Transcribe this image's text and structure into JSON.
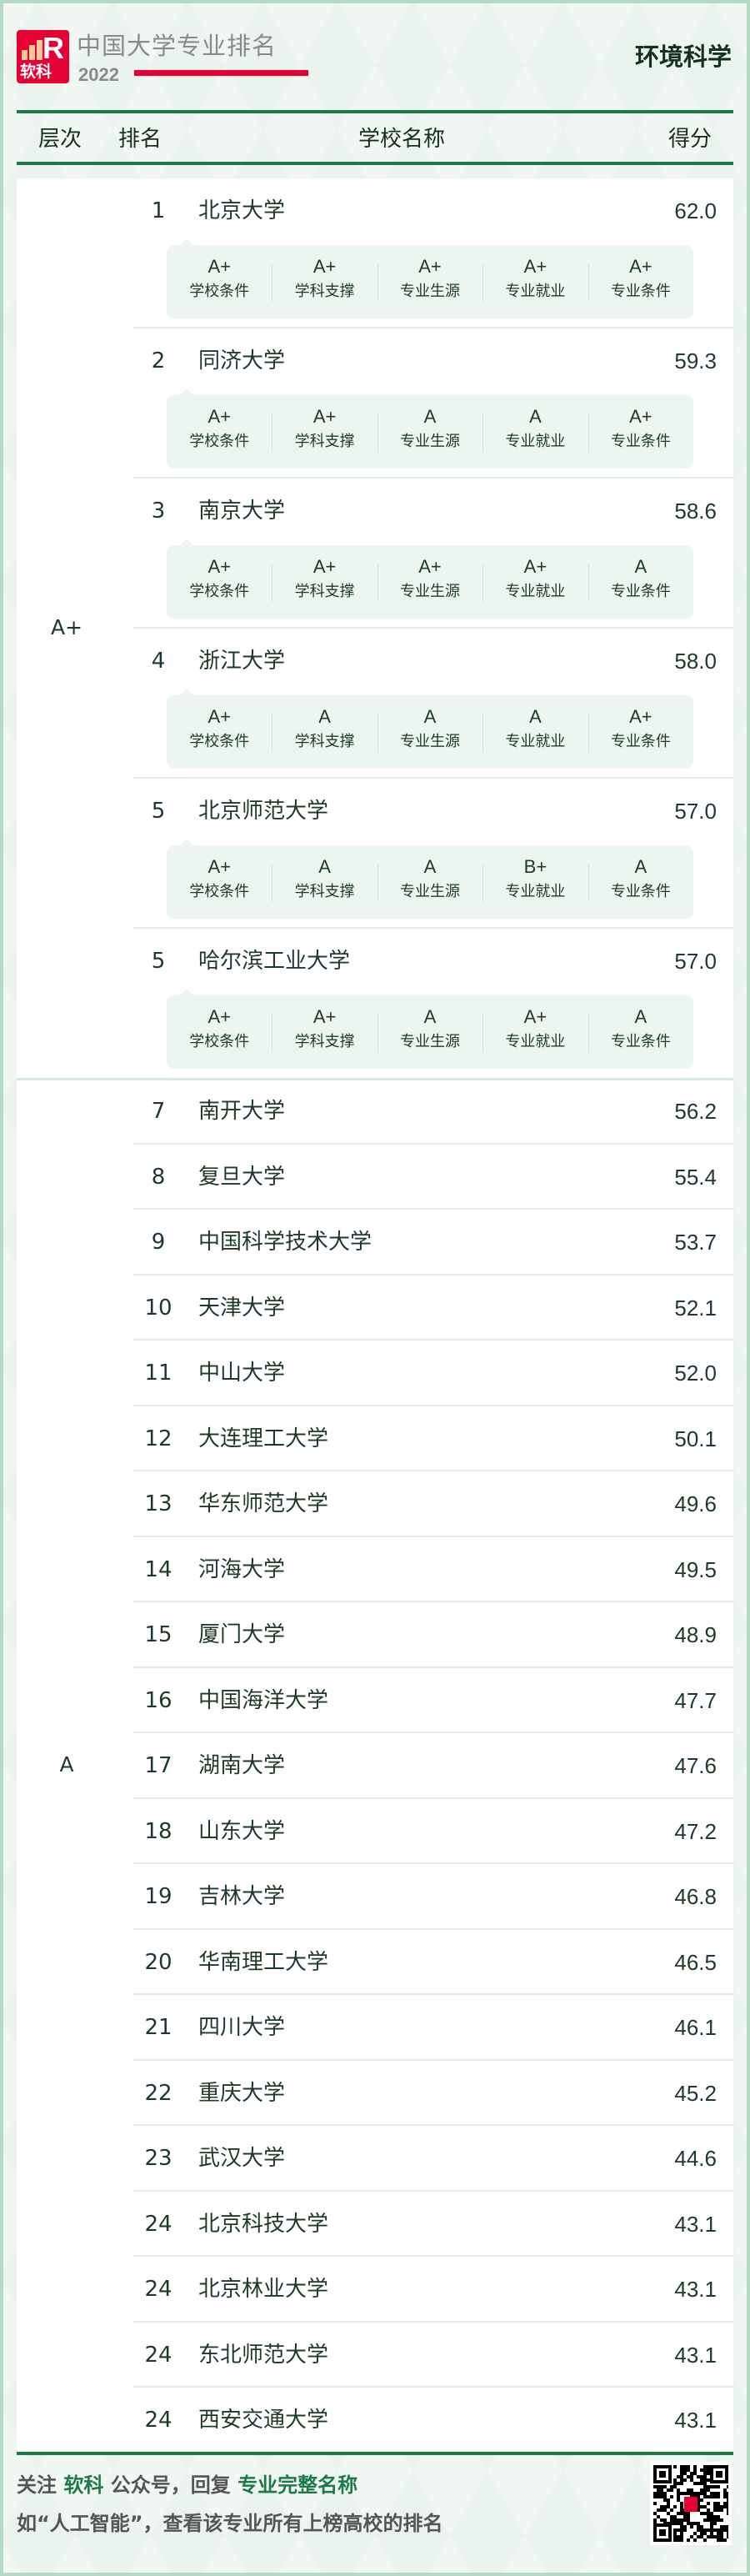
{
  "brand": {
    "logo_text": "软科",
    "title": "中国大学专业排名",
    "year": "2022"
  },
  "subject": "环境科学",
  "header": {
    "level": "层次",
    "rank": "排名",
    "school": "学校名称",
    "score": "得分"
  },
  "grade_labels": [
    "学校条件",
    "学科支撑",
    "专业生源",
    "专业就业",
    "专业条件"
  ],
  "sections": [
    {
      "level": "A+",
      "rows": [
        {
          "rank": "1",
          "name": "北京大学",
          "score": "62.0",
          "grades": [
            "A+",
            "A+",
            "A+",
            "A+",
            "A+"
          ]
        },
        {
          "rank": "2",
          "name": "同济大学",
          "score": "59.3",
          "grades": [
            "A+",
            "A+",
            "A",
            "A",
            "A+"
          ]
        },
        {
          "rank": "3",
          "name": "南京大学",
          "score": "58.6",
          "grades": [
            "A+",
            "A+",
            "A+",
            "A+",
            "A"
          ]
        },
        {
          "rank": "4",
          "name": "浙江大学",
          "score": "58.0",
          "grades": [
            "A+",
            "A",
            "A",
            "A",
            "A+"
          ]
        },
        {
          "rank": "5",
          "name": "北京师范大学",
          "score": "57.0",
          "grades": [
            "A+",
            "A",
            "A",
            "B+",
            "A"
          ]
        },
        {
          "rank": "5",
          "name": "哈尔滨工业大学",
          "score": "57.0",
          "grades": [
            "A+",
            "A+",
            "A",
            "A+",
            "A"
          ]
        }
      ]
    },
    {
      "level": "A",
      "rows": [
        {
          "rank": "7",
          "name": "南开大学",
          "score": "56.2"
        },
        {
          "rank": "8",
          "name": "复旦大学",
          "score": "55.4"
        },
        {
          "rank": "9",
          "name": "中国科学技术大学",
          "score": "53.7"
        },
        {
          "rank": "10",
          "name": "天津大学",
          "score": "52.1"
        },
        {
          "rank": "11",
          "name": "中山大学",
          "score": "52.0"
        },
        {
          "rank": "12",
          "name": "大连理工大学",
          "score": "50.1"
        },
        {
          "rank": "13",
          "name": "华东师范大学",
          "score": "49.6"
        },
        {
          "rank": "14",
          "name": "河海大学",
          "score": "49.5"
        },
        {
          "rank": "15",
          "name": "厦门大学",
          "score": "48.9"
        },
        {
          "rank": "16",
          "name": "中国海洋大学",
          "score": "47.7"
        },
        {
          "rank": "17",
          "name": "湖南大学",
          "score": "47.6"
        },
        {
          "rank": "18",
          "name": "山东大学",
          "score": "47.2"
        },
        {
          "rank": "19",
          "name": "吉林大学",
          "score": "46.8"
        },
        {
          "rank": "20",
          "name": "华南理工大学",
          "score": "46.5"
        },
        {
          "rank": "21",
          "name": "四川大学",
          "score": "46.1"
        },
        {
          "rank": "22",
          "name": "重庆大学",
          "score": "45.2"
        },
        {
          "rank": "23",
          "name": "武汉大学",
          "score": "44.6"
        },
        {
          "rank": "24",
          "name": "北京科技大学",
          "score": "43.1"
        },
        {
          "rank": "24",
          "name": "北京林业大学",
          "score": "43.1"
        },
        {
          "rank": "24",
          "name": "东北师范大学",
          "score": "43.1"
        },
        {
          "rank": "24",
          "name": "西安交通大学",
          "score": "43.1"
        }
      ]
    }
  ],
  "footer": {
    "line1": [
      {
        "t": "关注 ",
        "hl": false
      },
      {
        "t": "软科",
        "hl": true
      },
      {
        "t": " 公众号，回复 ",
        "hl": false
      },
      {
        "t": "专业完整名称",
        "hl": true
      }
    ],
    "line2": "如“人工智能”，查看该专业所有上榜高校的排名"
  },
  "colors": {
    "accent": "#1e7a45",
    "brand_red": "#e60033",
    "frame": "#b6d9c4",
    "grade_bg": "#edf5f0"
  },
  "icons": {
    "logo": "shanghairanking-logo",
    "qr": "qr-code"
  }
}
